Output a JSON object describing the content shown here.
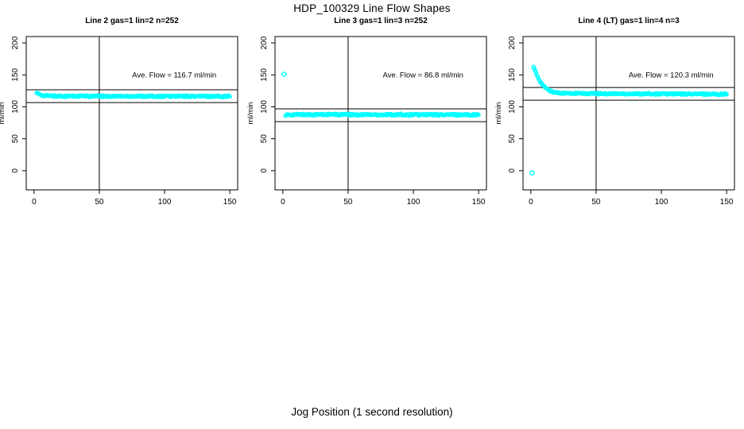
{
  "page": {
    "main_title": "HDP_100329  Line Flow Shapes",
    "x_axis_label": "Jog Position (1 second resolution)"
  },
  "chart_data": [
    {
      "type": "scatter",
      "title": "Line 2 gas=1 lin=2 n=252",
      "ylabel": "ml/min",
      "xlim": [
        -6,
        156
      ],
      "ylim": [
        -30,
        210
      ],
      "xticks": [
        0,
        50,
        100,
        150
      ],
      "yticks": [
        0,
        50,
        100,
        150,
        200
      ],
      "annotation": "Ave. Flow =  116.7  ml/min",
      "ave_flow": 116.7,
      "hlines": [
        126.7,
        106.7
      ],
      "vline": 50,
      "annotation_pos": {
        "x_frac": 0.7,
        "y_value": 150
      },
      "marker_color": "#00FFFF",
      "n_points": 250,
      "x_start": 2,
      "x_end": 150,
      "band_halfwidth": 1.3,
      "series_keypoints": [
        [
          2,
          122
        ],
        [
          3,
          120.6
        ],
        [
          4,
          119.6
        ],
        [
          5,
          118.8
        ],
        [
          6,
          118.2
        ],
        [
          8,
          117.5
        ],
        [
          10,
          117.2
        ],
        [
          14,
          116.9
        ],
        [
          20,
          116.8
        ],
        [
          30,
          116.7
        ],
        [
          50,
          116.6
        ],
        [
          80,
          116.6
        ],
        [
          110,
          116.5
        ],
        [
          150,
          116.5
        ]
      ],
      "outliers": []
    },
    {
      "type": "scatter",
      "title": "Line 3 gas=1 lin=3 n=252",
      "ylabel": "ml/min",
      "xlim": [
        -6,
        156
      ],
      "ylim": [
        -30,
        210
      ],
      "xticks": [
        0,
        50,
        100,
        150
      ],
      "yticks": [
        0,
        50,
        100,
        150,
        200
      ],
      "annotation": "Ave. Flow =  86.8  ml/min",
      "ave_flow": 86.8,
      "hlines": [
        96.8,
        76.8
      ],
      "vline": 50,
      "annotation_pos": {
        "x_frac": 0.7,
        "y_value": 150
      },
      "marker_color": "#00FFFF",
      "n_points": 250,
      "x_start": 2,
      "x_end": 150,
      "band_halfwidth": 1.4,
      "series_keypoints": [
        [
          2,
          86
        ],
        [
          3,
          87
        ],
        [
          4,
          87.4
        ],
        [
          6,
          87.6
        ],
        [
          10,
          87.8
        ],
        [
          30,
          87.9
        ],
        [
          60,
          87.8
        ],
        [
          100,
          87.7
        ],
        [
          150,
          87.6
        ]
      ],
      "outliers": [
        [
          1,
          151
        ]
      ]
    },
    {
      "type": "scatter",
      "title": "Line 4 (LT) gas=1 lin=4 n=3",
      "ylabel": "ml/min",
      "xlim": [
        -6,
        156
      ],
      "ylim": [
        -30,
        210
      ],
      "xticks": [
        0,
        50,
        100,
        150
      ],
      "yticks": [
        0,
        50,
        100,
        150,
        200
      ],
      "annotation": "Ave. Flow =  120.3  ml/min",
      "ave_flow": 120.3,
      "hlines": [
        130.3,
        110.3
      ],
      "vline": 50,
      "annotation_pos": {
        "x_frac": 0.7,
        "y_value": 150
      },
      "marker_color": "#00FFFF",
      "n_points": 250,
      "x_start": 2,
      "x_end": 150,
      "band_halfwidth": 1.2,
      "series_keypoints": [
        [
          2,
          163
        ],
        [
          3,
          157.5
        ],
        [
          4,
          152.5
        ],
        [
          5,
          148
        ],
        [
          6,
          144
        ],
        [
          7,
          140.5
        ],
        [
          8,
          137.3
        ],
        [
          9,
          134.5
        ],
        [
          10,
          132
        ],
        [
          11,
          130
        ],
        [
          12,
          128.3
        ],
        [
          14,
          125.8
        ],
        [
          16,
          124
        ],
        [
          18,
          122.9
        ],
        [
          20,
          122.2
        ],
        [
          23,
          121.6
        ],
        [
          26,
          121.3
        ],
        [
          30,
          121.1
        ],
        [
          40,
          120.8
        ],
        [
          50,
          120.7
        ],
        [
          60,
          120.6
        ],
        [
          80,
          120.4
        ],
        [
          100,
          120.3
        ],
        [
          120,
          120.1
        ],
        [
          150,
          119.9
        ]
      ],
      "outliers": [
        [
          1,
          -3.5
        ]
      ]
    }
  ]
}
